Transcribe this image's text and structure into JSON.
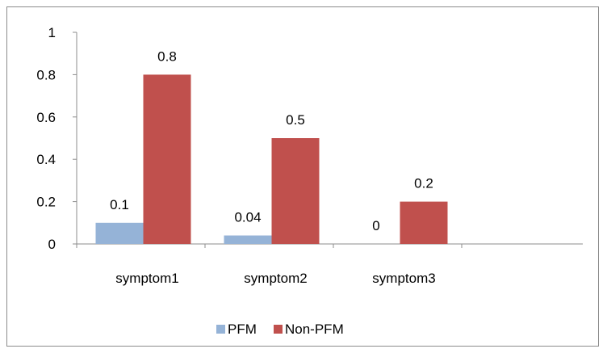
{
  "chart_data": {
    "type": "bar",
    "categories": [
      "symptom1",
      "symptom2",
      "symptom3"
    ],
    "series": [
      {
        "name": "PFM",
        "values": [
          0.1,
          0.04,
          0
        ],
        "labels": [
          "0.1",
          "0.04",
          "0"
        ],
        "color": "#95B3D7"
      },
      {
        "name": "Non-PFM",
        "values": [
          0.8,
          0.5,
          0.2
        ],
        "labels": [
          "0.8",
          "0.5",
          "0.2"
        ],
        "color": "#C0504D"
      }
    ],
    "ylim": [
      0,
      1
    ],
    "yticks": [
      0,
      0.2,
      0.4,
      0.6,
      0.8,
      1
    ],
    "ytick_labels": [
      "0",
      "0.2",
      "0.4",
      "0.6",
      "0.8",
      "1"
    ],
    "legend": "bottom",
    "grid": false
  }
}
